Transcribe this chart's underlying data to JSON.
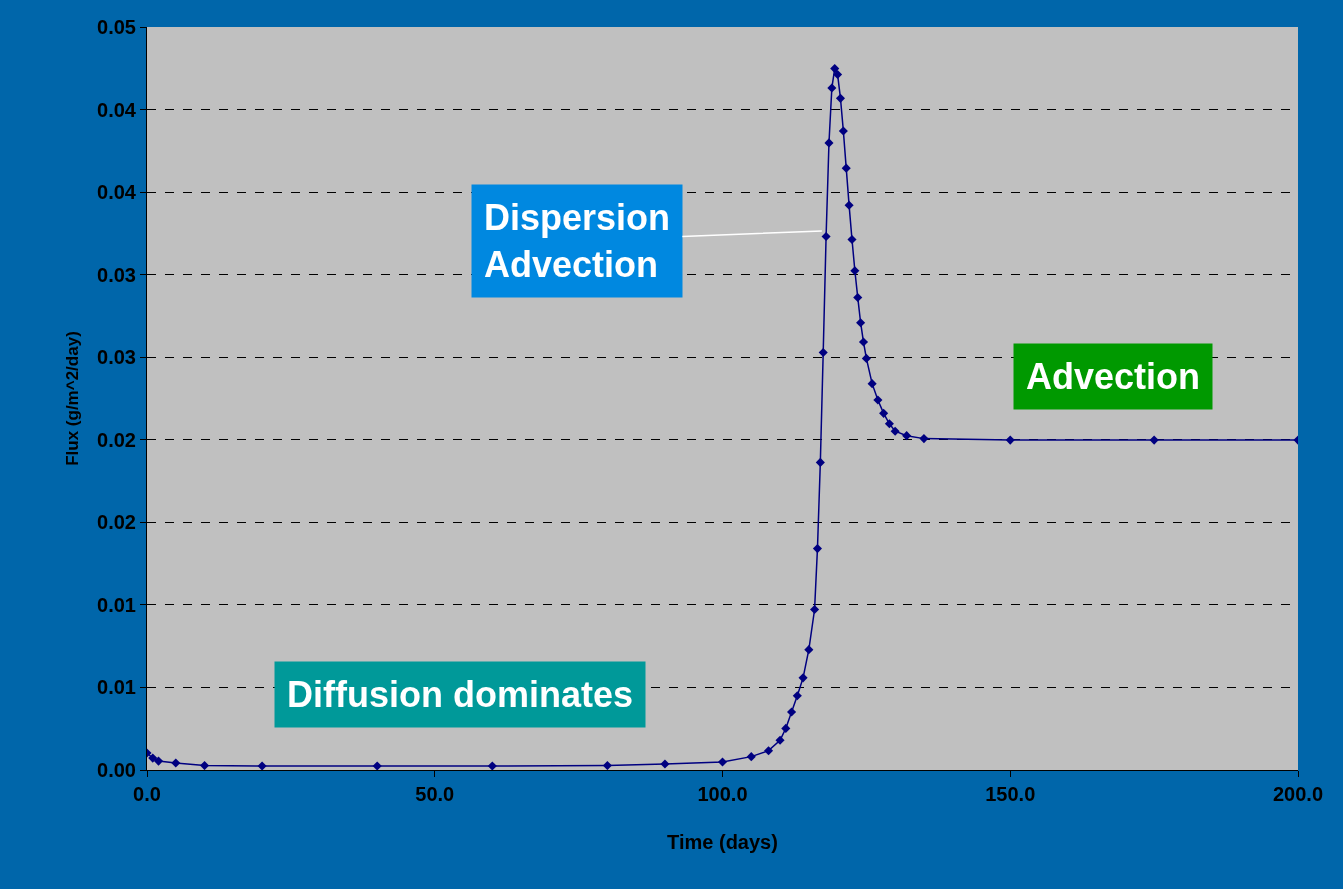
{
  "chart_data": {
    "type": "line",
    "xlabel": "Time (days)",
    "ylabel": "Flux (g/m^2/day)",
    "x": [
      0,
      1,
      2,
      5,
      10,
      20,
      40,
      60,
      80,
      90,
      100,
      105,
      108,
      110,
      111,
      112,
      113,
      114,
      115,
      116,
      116.5,
      117,
      117.5,
      118,
      118.5,
      119,
      119.5,
      120,
      120.5,
      121,
      121.5,
      122,
      122.5,
      123,
      123.5,
      124,
      124.5,
      125,
      126,
      127,
      128,
      129,
      130,
      132,
      135,
      150,
      175,
      200
    ],
    "series": [
      {
        "color": "#000080",
        "values": [
          0.00114,
          0.0008,
          0.0006,
          0.00047,
          0.0003,
          0.00027,
          0.00027,
          0.00027,
          0.0003,
          0.0004,
          0.00054,
          0.0009,
          0.0013,
          0.002,
          0.0028,
          0.0039,
          0.005,
          0.0062,
          0.0081,
          0.0108,
          0.0149,
          0.0207,
          0.0281,
          0.0359,
          0.0422,
          0.0459,
          0.0472,
          0.0468,
          0.0452,
          0.043,
          0.0405,
          0.038,
          0.0357,
          0.0336,
          0.0318,
          0.0301,
          0.0288,
          0.0277,
          0.026,
          0.0249,
          0.024,
          0.0233,
          0.0228,
          0.0225,
          0.0223,
          0.0222,
          0.0222,
          0.0222
        ]
      }
    ],
    "xlim": [
      0,
      200
    ],
    "xticks": [
      {
        "value": 0,
        "label": "0.0"
      },
      {
        "value": 50,
        "label": "50.0"
      },
      {
        "value": 100,
        "label": "100.0"
      },
      {
        "value": 150,
        "label": "150.0"
      },
      {
        "value": 200,
        "label": "200.0"
      }
    ],
    "ylim": [
      0,
      0.05
    ],
    "yticks": [
      {
        "value": 0,
        "label": "0.00"
      },
      {
        "value": 0.00556,
        "label": "0.01"
      },
      {
        "value": 0.01111,
        "label": "0.01"
      },
      {
        "value": 0.01667,
        "label": "0.02"
      },
      {
        "value": 0.02222,
        "label": "0.02"
      },
      {
        "value": 0.02778,
        "label": "0.03"
      },
      {
        "value": 0.03333,
        "label": "0.03"
      },
      {
        "value": 0.03889,
        "label": "0.04"
      },
      {
        "value": 0.04444,
        "label": "0.04"
      },
      {
        "value": 0.05,
        "label": "0.05"
      }
    ],
    "grid": "y",
    "marker": "diamond",
    "line_style": "solid",
    "legend": false,
    "annotations": [
      {
        "text": "Dispersion\nAdvection",
        "x": 119,
        "y": 0.0363
      },
      "Advection",
      "Diffusion dominates"
    ]
  }
}
